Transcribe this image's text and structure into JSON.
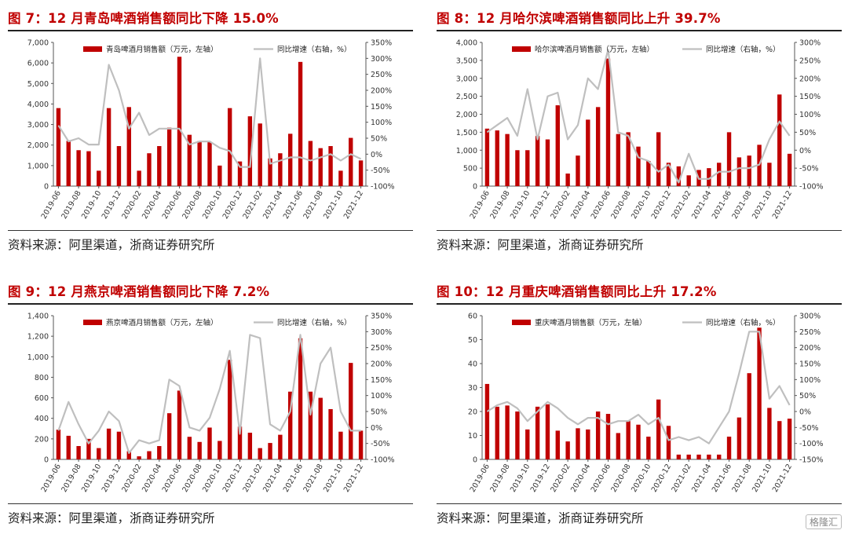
{
  "colors": {
    "bar": "#c00000",
    "line": "#bfbfbf",
    "title": "#c00000"
  },
  "watermark": "格隆汇",
  "charts": [
    {
      "title": "图 7：12 月青岛啤酒销售额同比下降 15.0%",
      "source": "资料来源：阿里渠道，浙商证券研究所",
      "chart_data": {
        "type": "bar+line",
        "legend_bar": "青岛啤酒月销售额（万元，左轴）",
        "legend_line": "同比增速（右轴，%）",
        "left_ticks": [
          "0",
          "1,000",
          "2,000",
          "3,000",
          "4,000",
          "5,000",
          "6,000",
          "7,000"
        ],
        "right_ticks": [
          "-100%",
          "-50%",
          "0%",
          "50%",
          "100%",
          "150%",
          "200%",
          "250%",
          "300%",
          "350%"
        ],
        "ylim_left": [
          0,
          7000
        ],
        "ylim_right": [
          -100,
          350
        ],
        "x_tick_labels": [
          "2019-06",
          "2019-08",
          "2019-10",
          "2019-12",
          "2020-02",
          "2020-04",
          "2020-06",
          "2020-08",
          "2020-10",
          "2020-12",
          "2021-02",
          "2021-04",
          "2021-06",
          "2021-08",
          "2021-10",
          "2021-12"
        ],
        "bars": [
          3800,
          2200,
          1750,
          1700,
          750,
          3800,
          1950,
          3850,
          750,
          1600,
          1950,
          2850,
          6300,
          2500,
          2200,
          2150,
          1000,
          3800,
          1200,
          3400,
          3050,
          1350,
          1600,
          2550,
          6050,
          2200,
          1850,
          1950,
          750,
          2350,
          1250
        ],
        "line": [
          90,
          40,
          50,
          30,
          30,
          280,
          200,
          80,
          130,
          60,
          80,
          80,
          80,
          30,
          40,
          40,
          20,
          10,
          -40,
          -40,
          300,
          -30,
          -20,
          -10,
          -10,
          -20,
          -10,
          0,
          -20,
          0,
          -15
        ]
      }
    },
    {
      "title": "图 8：12 月哈尔滨啤酒销售额同比上升 39.7%",
      "source": "资料来源：阿里渠道，浙商证券研究所",
      "chart_data": {
        "type": "bar+line",
        "legend_bar": "哈尔滨啤酒月销售额（万元，左轴）",
        "legend_line": "同比增速（右轴，%）",
        "left_ticks": [
          "0",
          "500",
          "1,000",
          "1,500",
          "2,000",
          "2,500",
          "3,000",
          "3,500",
          "4,000"
        ],
        "right_ticks": [
          "-100%",
          "-50%",
          "0%",
          "50%",
          "100%",
          "150%",
          "200%",
          "250%",
          "300%"
        ],
        "ylim_left": [
          0,
          4000
        ],
        "ylim_right": [
          -100,
          300
        ],
        "x_tick_labels": [
          "2019-06",
          "2019-08",
          "2019-10",
          "2019-12",
          "2020-02",
          "2020-04",
          "2020-06",
          "2020-08",
          "2020-10",
          "2020-12",
          "2021-02",
          "2021-04",
          "2021-06",
          "2021-08",
          "2021-10",
          "2021-12"
        ],
        "bars": [
          1600,
          1550,
          1450,
          1000,
          1000,
          1400,
          1300,
          2250,
          350,
          850,
          1850,
          2200,
          3550,
          1450,
          1500,
          1100,
          700,
          1500,
          650,
          550,
          300,
          450,
          500,
          650,
          1500,
          800,
          850,
          1150,
          650,
          2550,
          900
        ],
        "line": [
          50,
          70,
          90,
          40,
          170,
          30,
          150,
          160,
          30,
          70,
          200,
          170,
          280,
          50,
          40,
          -20,
          -30,
          -60,
          -40,
          -90,
          -10,
          -80,
          -80,
          -60,
          -60,
          -50,
          -50,
          -40,
          30,
          80,
          40
        ]
      }
    },
    {
      "title": "图 9：12 月燕京啤酒销售额同比下降 7.2%",
      "source": "资料来源：阿里渠道，浙商证券研究所",
      "chart_data": {
        "type": "bar+line",
        "legend_bar": "燕京啤酒月销售额（万元，左轴）",
        "legend_line": "同比增速（右轴，%）",
        "left_ticks": [
          "0",
          "200",
          "400",
          "600",
          "800",
          "1,000",
          "1,200",
          "1,400"
        ],
        "right_ticks": [
          "-100%",
          "-50%",
          "0%",
          "50%",
          "100%",
          "150%",
          "200%",
          "250%",
          "300%",
          "350%"
        ],
        "ylim_left": [
          0,
          1400
        ],
        "ylim_right": [
          -100,
          350
        ],
        "x_tick_labels": [
          "2019-06",
          "2019-08",
          "2019-10",
          "2019-12",
          "2020-02",
          "2020-04",
          "2020-06",
          "2020-08",
          "2020-10",
          "2020-12",
          "2021-02",
          "2021-04",
          "2021-06",
          "2021-08",
          "2021-10",
          "2021-12"
        ],
        "bars": [
          290,
          230,
          130,
          200,
          110,
          300,
          270,
          80,
          30,
          80,
          130,
          450,
          670,
          220,
          170,
          310,
          180,
          970,
          320,
          260,
          110,
          160,
          240,
          660,
          1180,
          660,
          600,
          490,
          270,
          940,
          280
        ],
        "line": [
          -10,
          80,
          10,
          -50,
          -10,
          50,
          20,
          -80,
          -40,
          -50,
          -40,
          150,
          130,
          0,
          -10,
          30,
          120,
          240,
          -20,
          290,
          280,
          10,
          -10,
          50,
          290,
          40,
          200,
          250,
          50,
          -10,
          -10
        ]
      }
    },
    {
      "title": "图 10：12 月重庆啤酒销售额同比上升 17.2%",
      "source": "资料来源：阿里渠道，浙商证券研究所",
      "chart_data": {
        "type": "bar+line",
        "legend_bar": "重庆啤酒月销售额（万元，左轴）",
        "legend_line": "同比增速（右轴，%）",
        "left_ticks": [
          "0",
          "10",
          "20",
          "30",
          "40",
          "50",
          "60"
        ],
        "right_ticks": [
          "-150%",
          "-100%",
          "-50%",
          "0%",
          "50%",
          "100%",
          "150%",
          "200%",
          "250%",
          "300%"
        ],
        "ylim_left": [
          0,
          60
        ],
        "ylim_right": [
          -150,
          300
        ],
        "x_tick_labels": [
          "2019-06",
          "2019-08",
          "2019-10",
          "2019-12",
          "2020-02",
          "2020-04",
          "2020-06",
          "2020-08",
          "2020-10",
          "2020-12",
          "2021-02",
          "2021-04",
          "2021-06",
          "2021-08",
          "2021-10",
          "2021-12"
        ],
        "bars": [
          31.5,
          22,
          22.5,
          20,
          12.5,
          22,
          23,
          12,
          7.5,
          13,
          12.5,
          20,
          19,
          11,
          16,
          14.5,
          9.5,
          25,
          14,
          2,
          2,
          2,
          2,
          2,
          9.5,
          17.5,
          36,
          55,
          21.5,
          16,
          17
        ],
        "line": [
          0,
          20,
          30,
          10,
          -30,
          0,
          30,
          10,
          -20,
          -40,
          -20,
          -20,
          -40,
          -30,
          -30,
          -10,
          -40,
          -20,
          -90,
          -80,
          -90,
          -80,
          -100,
          -50,
          0,
          120,
          250,
          250,
          40,
          80,
          20
        ]
      }
    }
  ]
}
